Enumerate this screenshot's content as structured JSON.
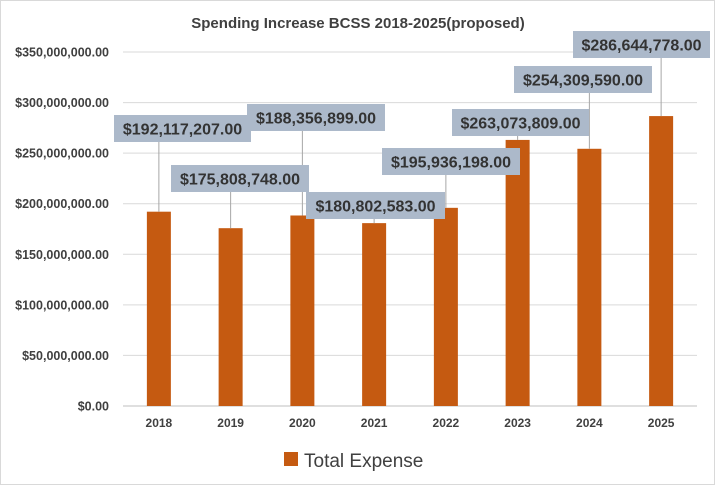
{
  "chart_data": {
    "type": "bar",
    "title": "Spending Increase BCSS 2018-2025(proposed)",
    "categories": [
      "2018",
      "2019",
      "2020",
      "2021",
      "2022",
      "2023",
      "2024",
      "2025"
    ],
    "series": [
      {
        "name": "Total Expense",
        "color": "#c55a11",
        "values": [
          192117207.0,
          175808748.0,
          188356899.0,
          180802583.0,
          195936198.0,
          263073809.0,
          254309590.0,
          286644778.0
        ],
        "labels": [
          "$192,117,207.00",
          "$175,808,748.00",
          "$188,356,899.00",
          "$180,802,583.00",
          "$195,936,198.00",
          "$263,073,809.00",
          "$254,309,590.00",
          "$286,644,778.00"
        ]
      }
    ],
    "yticks": [
      "$0.00",
      "$50,000,000.00",
      "$100,000,000.00",
      "$150,000,000.00",
      "$200,000,000.00",
      "$250,000,000.00",
      "$300,000,000.00",
      "$350,000,000.00"
    ],
    "ylim": [
      0,
      350000000
    ],
    "grid": true,
    "legend_position": "bottom",
    "label_box_color": "#acb9ca",
    "leader_line_color": "#a6a6a6"
  }
}
